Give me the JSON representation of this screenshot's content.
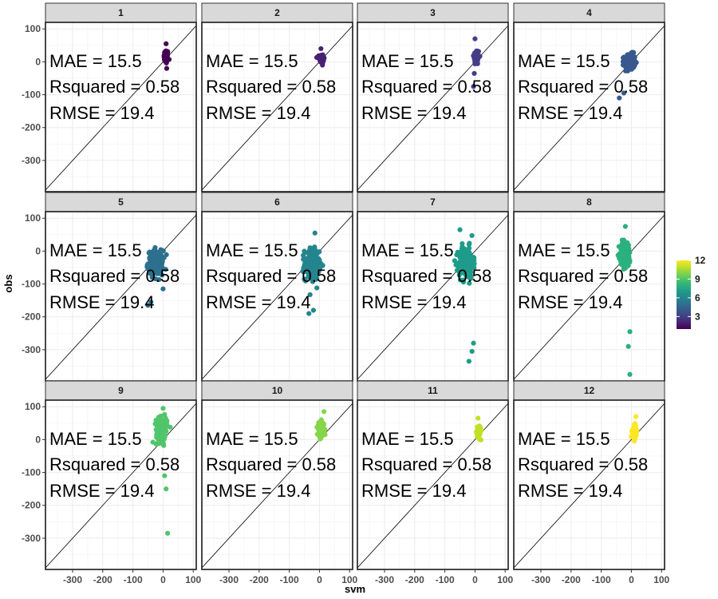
{
  "chart_data": {
    "type": "scatter",
    "facet_by": "month",
    "facets": [
      {
        "label": "1",
        "color": "#440154",
        "center": [
          10,
          15
        ],
        "spread": [
          6,
          18
        ],
        "n": 60,
        "outliers": [
          [
            10,
            55
          ],
          [
            12,
            -20
          ]
        ]
      },
      {
        "label": "2",
        "color": "#482173",
        "center": [
          8,
          10
        ],
        "spread": [
          7,
          12
        ],
        "n": 50,
        "outliers": [
          [
            5,
            40
          ],
          [
            10,
            -10
          ]
        ]
      },
      {
        "label": "3",
        "color": "#433E85",
        "center": [
          5,
          15
        ],
        "spread": [
          8,
          20
        ],
        "n": 70,
        "outliers": [
          [
            0,
            70
          ],
          [
            -5,
            -75
          ]
        ]
      },
      {
        "label": "4",
        "color": "#38598C",
        "center": [
          -5,
          0
        ],
        "spread": [
          15,
          20
        ],
        "n": 150,
        "outliers": [
          [
            -40,
            -110
          ],
          [
            -25,
            -95
          ]
        ]
      },
      {
        "label": "5",
        "color": "#2D708E",
        "center": [
          -25,
          -35
        ],
        "spread": [
          20,
          30
        ],
        "n": 220,
        "outliers": [
          [
            -50,
            -165
          ],
          [
            -40,
            -155
          ],
          [
            0,
            -115
          ]
        ]
      },
      {
        "label": "6",
        "color": "#25858E",
        "center": [
          -25,
          -40
        ],
        "spread": [
          20,
          40
        ],
        "n": 220,
        "outliers": [
          [
            -35,
            -190
          ],
          [
            -20,
            -180
          ],
          [
            -15,
            55
          ]
        ]
      },
      {
        "label": "7",
        "color": "#1E9B8A",
        "center": [
          -30,
          -35
        ],
        "spread": [
          20,
          40
        ],
        "n": 220,
        "outliers": [
          [
            -20,
            -335
          ],
          [
            -10,
            -305
          ],
          [
            -5,
            -280
          ],
          [
            -50,
            65
          ]
        ]
      },
      {
        "label": "8",
        "color": "#2BB07F",
        "center": [
          -20,
          -10
        ],
        "spread": [
          15,
          35
        ],
        "n": 180,
        "outliers": [
          [
            -5,
            -375
          ],
          [
            -10,
            -290
          ],
          [
            -5,
            -245
          ],
          [
            -20,
            75
          ]
        ]
      },
      {
        "label": "9",
        "color": "#51C56A",
        "center": [
          -5,
          30
        ],
        "spread": [
          15,
          30
        ],
        "n": 150,
        "outliers": [
          [
            15,
            -285
          ],
          [
            10,
            -150
          ],
          [
            5,
            -110
          ],
          [
            0,
            95
          ]
        ]
      },
      {
        "label": "10",
        "color": "#85D54A",
        "center": [
          5,
          30
        ],
        "spread": [
          10,
          20
        ],
        "n": 90,
        "outliers": [
          [
            15,
            85
          ],
          [
            0,
            10
          ]
        ]
      },
      {
        "label": "11",
        "color": "#C2DF23",
        "center": [
          12,
          25
        ],
        "spread": [
          6,
          15
        ],
        "n": 60,
        "outliers": [
          [
            10,
            65
          ],
          [
            15,
            0
          ]
        ]
      },
      {
        "label": "12",
        "color": "#FDE725",
        "center": [
          10,
          25
        ],
        "spread": [
          6,
          15
        ],
        "n": 60,
        "outliers": [
          [
            15,
            70
          ],
          [
            10,
            -5
          ]
        ]
      }
    ],
    "annotations": [
      "MAE = 15.5",
      "Rsquared = 0.58",
      "RMSE = 19.4"
    ],
    "xlabel": "svm",
    "ylabel": "obs",
    "xlim": [
      -390,
      110
    ],
    "ylim": [
      -395,
      120
    ],
    "x_ticks": [
      -300,
      -200,
      -100,
      0,
      100
    ],
    "y_ticks": [
      100,
      0,
      -100,
      -200,
      -300
    ],
    "reference_line": "y = x",
    "grid": true,
    "legend": {
      "type": "colorbar",
      "position": "right",
      "min": 1,
      "max": 12,
      "ticks": [
        3,
        6,
        9,
        12
      ],
      "colors": [
        "#440154",
        "#482878",
        "#3E4A89",
        "#31688E",
        "#26828E",
        "#1F9E89",
        "#35B779",
        "#6DCD59",
        "#B4DE2C",
        "#FDE725"
      ]
    }
  }
}
